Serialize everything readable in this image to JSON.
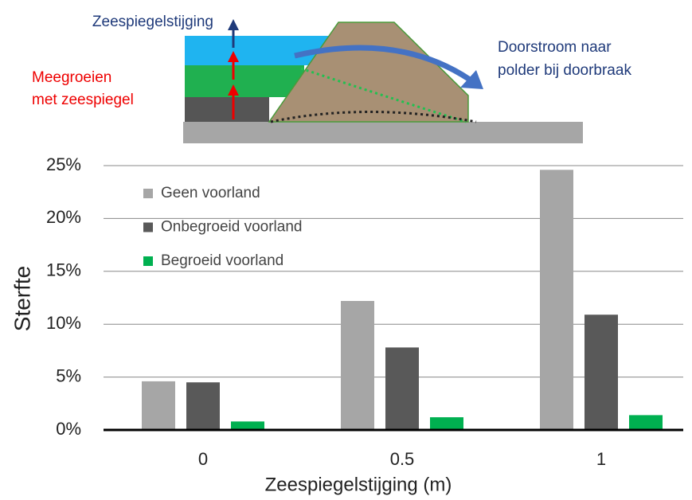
{
  "chart_data": {
    "type": "bar",
    "annotations": [
      "Zeespiegelstijging",
      "Meegroeien",
      "met zeespiegel",
      "Doorstroom naar",
      "polder bij doorbraak"
    ],
    "categories": [
      "0",
      "0.5",
      "1"
    ],
    "series": [
      {
        "name": "Geen voorland",
        "color": "#a6a6a6",
        "values": [
          4.6,
          12.2,
          24.6
        ]
      },
      {
        "name": "Onbegroeid voorland",
        "color": "#595959",
        "values": [
          4.5,
          7.8,
          10.9
        ]
      },
      {
        "name": "Begroeid voorland",
        "color": "#00b050",
        "values": [
          0.8,
          1.2,
          1.4
        ]
      }
    ],
    "ylabel": "Sterfte",
    "xlabel": "Zeespiegelstijging (m)",
    "ylim": [
      0,
      25
    ],
    "yticks": [
      {
        "value": 0,
        "label": "0%"
      },
      {
        "value": 5,
        "label": "5%"
      },
      {
        "value": 10,
        "label": "10%"
      },
      {
        "value": 15,
        "label": "15%"
      },
      {
        "value": 20,
        "label": "20%"
      },
      {
        "value": 25,
        "label": "25%"
      }
    ],
    "grid": true,
    "legend": "upper left"
  }
}
